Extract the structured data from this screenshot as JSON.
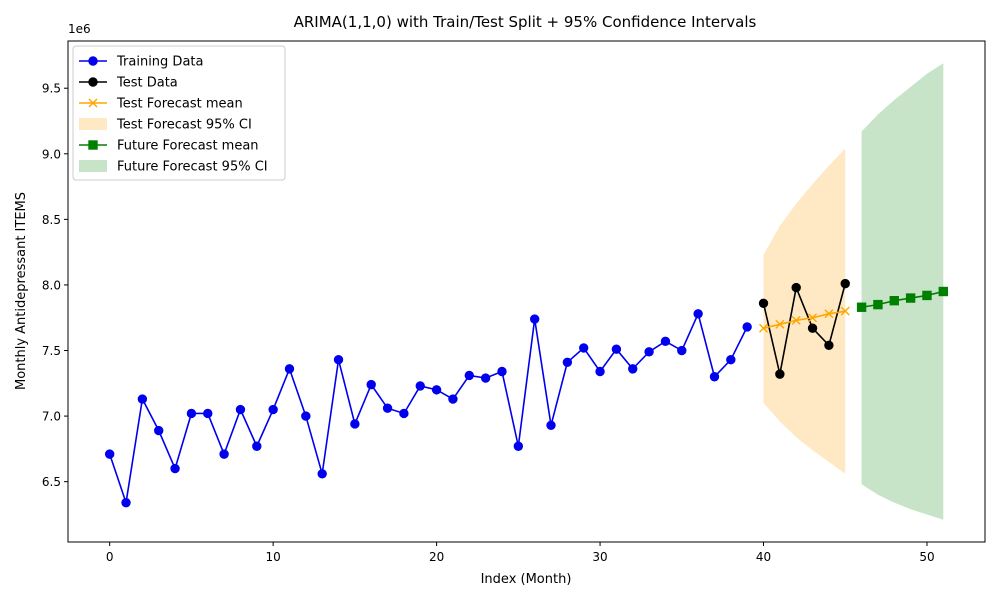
{
  "chart_data": {
    "type": "line",
    "title": "ARIMA(1,1,0) with Train/Test Split + 95% Confidence Intervals",
    "xlabel": "Index (Month)",
    "ylabel": "Monthly Antidepressant ITEMS",
    "y_multiplier_label": "1e6",
    "xlim": [
      -2.55,
      53.55
    ],
    "ylim": [
      6.04,
      9.86
    ],
    "x_ticks": [
      0,
      10,
      20,
      30,
      40,
      50
    ],
    "y_ticks": [
      6.5,
      7.0,
      7.5,
      8.0,
      8.5,
      9.0,
      9.5
    ],
    "x_tick_labels": [
      "0",
      "10",
      "20",
      "30",
      "40",
      "50"
    ],
    "y_tick_labels": [
      "6.5",
      "7.0",
      "7.5",
      "8.0",
      "8.5",
      "9.0",
      "9.5"
    ],
    "grid": false,
    "legend_position": "top-left",
    "colors": {
      "training": "#0000ee",
      "test": "#000000",
      "test_forecast": "#ffa500",
      "future_forecast": "#008000",
      "test_ci_fill": "#ffe9c4",
      "future_ci_fill": "#c8e4c8"
    },
    "series": [
      {
        "name": "Training Data",
        "kind": "line",
        "marker": "circle",
        "color": "#0000ee",
        "x": [
          0,
          1,
          2,
          3,
          4,
          5,
          6,
          7,
          8,
          9,
          10,
          11,
          12,
          13,
          14,
          15,
          16,
          17,
          18,
          19,
          20,
          21,
          22,
          23,
          24,
          25,
          26,
          27,
          28,
          29,
          30,
          31,
          32,
          33,
          34,
          35,
          36,
          37,
          38,
          39
        ],
        "y": [
          6.71,
          6.34,
          7.13,
          6.89,
          6.6,
          7.02,
          7.02,
          6.71,
          7.05,
          6.77,
          7.05,
          7.36,
          7.0,
          6.56,
          7.43,
          6.94,
          7.24,
          7.06,
          7.02,
          7.23,
          7.2,
          7.13,
          7.31,
          7.29,
          7.34,
          6.77,
          7.74,
          6.93,
          7.41,
          7.52,
          7.34,
          7.51,
          7.36,
          7.49,
          7.57,
          7.5,
          7.78,
          7.3,
          7.43,
          7.68
        ]
      },
      {
        "name": "Test Data",
        "kind": "line",
        "marker": "circle",
        "color": "#000000",
        "x": [
          40,
          41,
          42,
          43,
          44,
          45
        ],
        "y": [
          7.86,
          7.32,
          7.98,
          7.67,
          7.54,
          8.01
        ]
      },
      {
        "name": "Test Forecast mean",
        "kind": "line",
        "marker": "x",
        "color": "#ffa500",
        "x": [
          40,
          41,
          42,
          43,
          44,
          45
        ],
        "y": [
          7.67,
          7.7,
          7.73,
          7.75,
          7.78,
          7.8
        ]
      },
      {
        "name": "Test Forecast 95% CI",
        "kind": "band",
        "color": "#ffe9c4",
        "x": [
          40,
          41,
          42,
          43,
          44,
          45
        ],
        "lower": [
          7.1,
          6.96,
          6.84,
          6.74,
          6.65,
          6.56
        ],
        "upper": [
          8.23,
          8.45,
          8.62,
          8.77,
          8.91,
          9.04
        ]
      },
      {
        "name": "Future Forecast mean",
        "kind": "line",
        "marker": "square",
        "color": "#008000",
        "x": [
          46,
          47,
          48,
          49,
          50,
          51
        ],
        "y": [
          7.83,
          7.85,
          7.88,
          7.9,
          7.92,
          7.95
        ]
      },
      {
        "name": "Future Forecast 95% CI",
        "kind": "band",
        "color": "#c8e4c8",
        "x": [
          46,
          47,
          48,
          49,
          50,
          51
        ],
        "lower": [
          6.48,
          6.4,
          6.34,
          6.29,
          6.25,
          6.21
        ],
        "upper": [
          9.17,
          9.3,
          9.41,
          9.51,
          9.61,
          9.69
        ]
      }
    ]
  }
}
